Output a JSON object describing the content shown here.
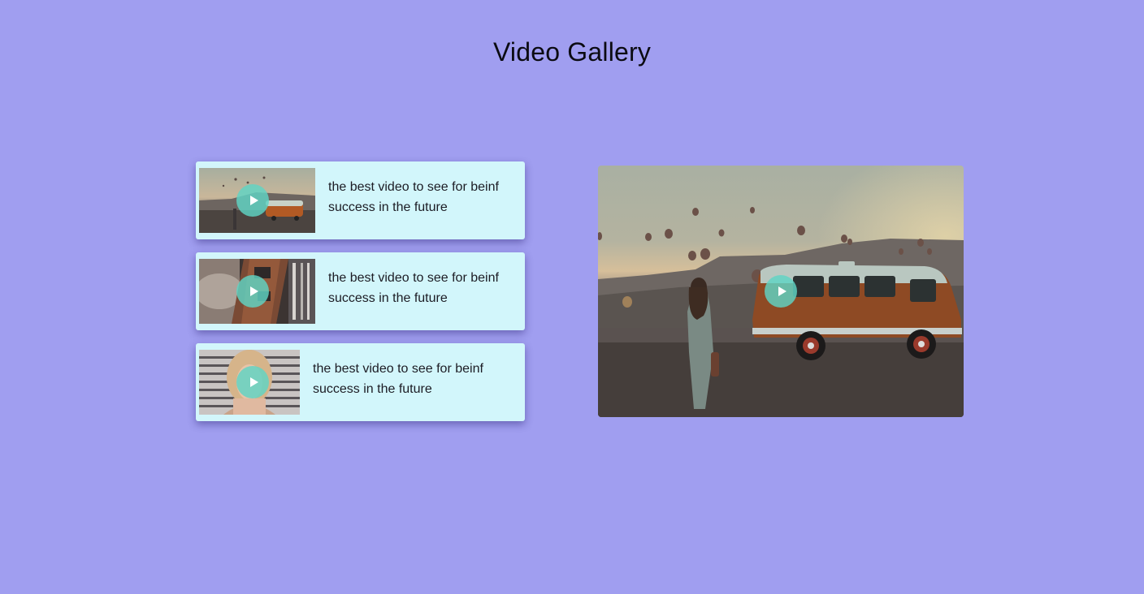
{
  "page": {
    "title": "Video Gallery"
  },
  "videos": [
    {
      "caption": "the best video to see for beinf success in the future",
      "scene": "van-balloons"
    },
    {
      "caption": "the best video to see for beinf success in the future",
      "scene": "city-aerial"
    },
    {
      "caption": "the best video to see for beinf success in the future",
      "scene": "woman-portrait"
    }
  ],
  "main_player": {
    "scene": "van-balloons"
  },
  "icons": {
    "play": "play-icon"
  },
  "colors": {
    "background": "#a09ef0",
    "card": "#d2f6fb",
    "play_button": "#5fd4c4"
  }
}
